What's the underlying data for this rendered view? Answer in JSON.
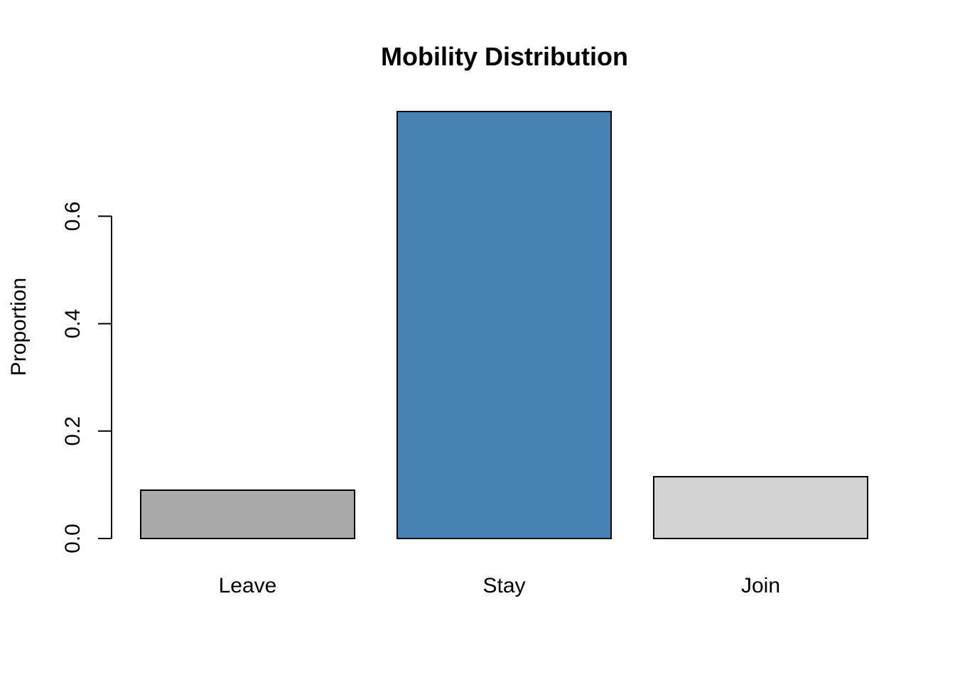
{
  "chart_data": {
    "type": "bar",
    "title": "Mobility Distribution",
    "xlabel": "",
    "ylabel": "Proportion",
    "categories": [
      "Leave",
      "Stay",
      "Join"
    ],
    "values": [
      0.09,
      0.795,
      0.115
    ],
    "colors": [
      "#a9a9a9",
      "#4682b4",
      "#d3d3d3"
    ],
    "yticks": [
      0.0,
      0.2,
      0.4,
      0.6
    ],
    "ytick_labels": [
      "0.0",
      "0.2",
      "0.4",
      "0.6"
    ],
    "ylim": [
      0,
      0.795
    ],
    "grid": false,
    "legend": "none"
  }
}
